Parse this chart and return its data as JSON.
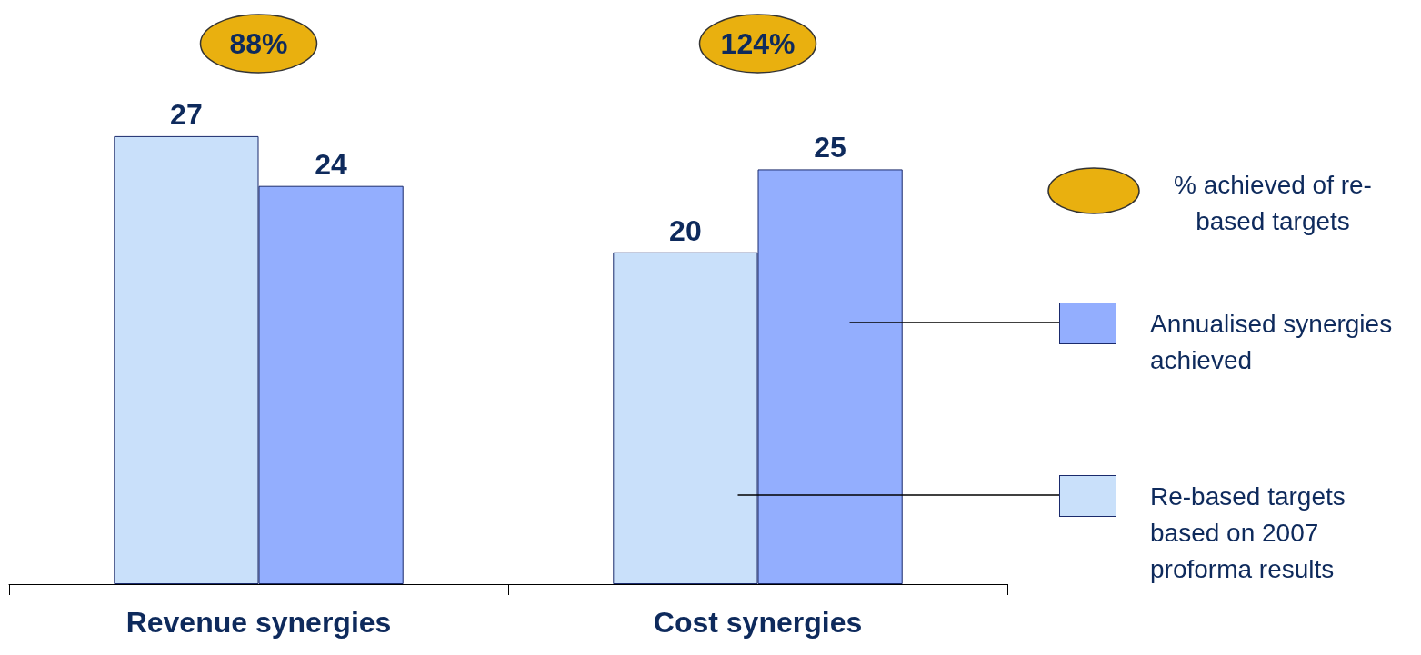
{
  "chart_data": {
    "type": "bar",
    "categories": [
      "Revenue synergies",
      "Cost synergies"
    ],
    "series": [
      {
        "name": "Re-based targets based on 2007 proforma results",
        "color": "#c9e0fa",
        "values": [
          27,
          20
        ]
      },
      {
        "name": "Annualised synergies achieved",
        "color": "#93aefe",
        "values": [
          24,
          25
        ]
      }
    ],
    "data_labels": true,
    "legend": "right",
    "grid": false,
    "annotations": [
      "88%",
      "124%",
      "% achieved of re-based targets"
    ]
  }
}
